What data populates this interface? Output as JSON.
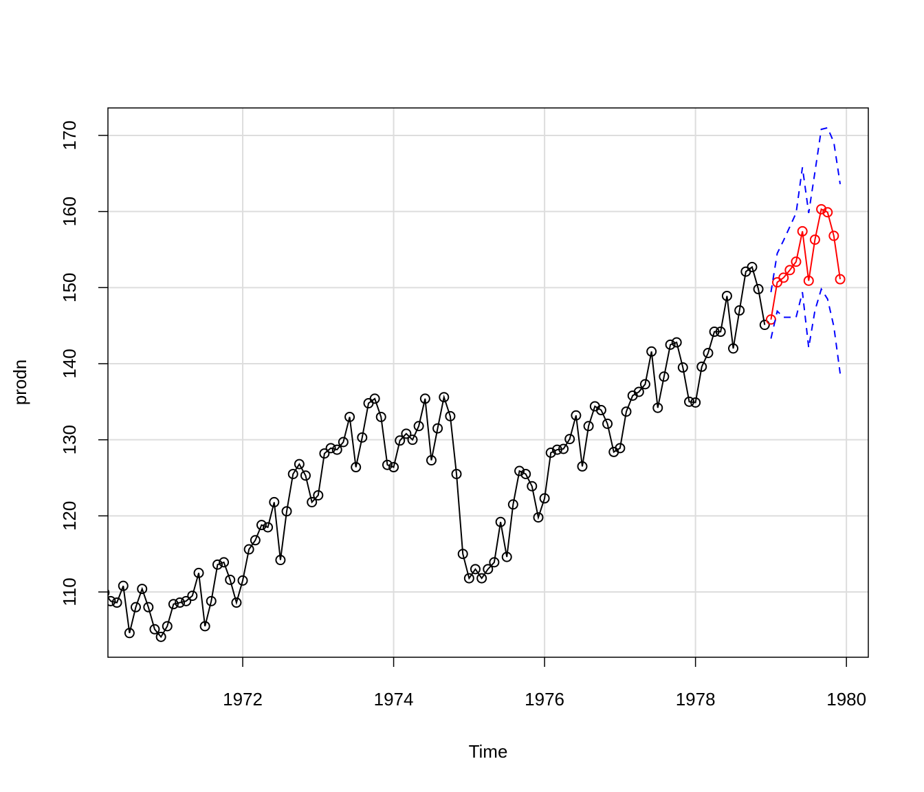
{
  "chart_data": {
    "type": "line",
    "x_label": "Time",
    "y_label": "prodn",
    "x": [
      1970.167,
      1970.25,
      1970.333,
      1970.417,
      1970.5,
      1970.583,
      1970.667,
      1970.75,
      1970.833,
      1970.917,
      1971,
      1971.083,
      1971.167,
      1971.25,
      1971.333,
      1971.417,
      1971.5,
      1971.583,
      1971.667,
      1971.75,
      1971.833,
      1971.917,
      1972,
      1972.083,
      1972.167,
      1972.25,
      1972.333,
      1972.417,
      1972.5,
      1972.583,
      1972.667,
      1972.75,
      1972.833,
      1972.917,
      1973,
      1973.083,
      1973.167,
      1973.25,
      1973.333,
      1973.417,
      1973.5,
      1973.583,
      1973.667,
      1973.75,
      1973.833,
      1973.917,
      1974,
      1974.083,
      1974.167,
      1974.25,
      1974.333,
      1974.417,
      1974.5,
      1974.583,
      1974.667,
      1974.75,
      1974.833,
      1974.917,
      1975,
      1975.083,
      1975.167,
      1975.25,
      1975.333,
      1975.417,
      1975.5,
      1975.583,
      1975.667,
      1975.75,
      1975.833,
      1975.917,
      1976,
      1976.083,
      1976.167,
      1976.25,
      1976.333,
      1976.417,
      1976.5,
      1976.583,
      1976.667,
      1976.75,
      1976.833,
      1976.917,
      1977,
      1977.083,
      1977.167,
      1977.25,
      1977.333,
      1977.417,
      1977.5,
      1977.583,
      1977.667,
      1977.75,
      1977.833,
      1977.917,
      1978,
      1978.083,
      1978.167,
      1978.25,
      1978.333,
      1978.417,
      1978.5,
      1978.583,
      1978.667,
      1978.75,
      1978.833,
      1978.917,
      1979,
      1979.083,
      1979.167,
      1979.25,
      1979.333,
      1979.417,
      1979.5,
      1979.583,
      1979.667,
      1979.75,
      1979.833,
      1979.917
    ],
    "series": [
      {
        "color": "#000000",
        "marker": "circle",
        "linestyle": "solid",
        "values": [
          109.9,
          108.8,
          108.6,
          110.8,
          104.6,
          108.0,
          110.4,
          108.0,
          105.1,
          104.1,
          105.5,
          108.4,
          108.6,
          108.8,
          109.5,
          112.5,
          105.5,
          108.8,
          113.6,
          113.9,
          111.6,
          108.6,
          111.5,
          115.6,
          116.8,
          118.8,
          118.5,
          121.8,
          114.2,
          120.6,
          125.5,
          126.8,
          125.3,
          121.8,
          122.7,
          128.2,
          128.9,
          128.7,
          129.7,
          133.0,
          126.4,
          130.3,
          134.8,
          135.4,
          133.0,
          126.7,
          126.4,
          129.9,
          130.8,
          130.0,
          131.8,
          135.4,
          127.3,
          131.5,
          135.6,
          133.1,
          125.5,
          115.0,
          111.8,
          113.0,
          111.8,
          113.0,
          113.9,
          119.2,
          114.6,
          121.5,
          125.9,
          125.5,
          123.9,
          119.8,
          122.3,
          128.3,
          128.7,
          128.8,
          130.1,
          133.2,
          126.5,
          131.8,
          134.4,
          133.9,
          132.1,
          128.4,
          128.9,
          133.7,
          135.8,
          136.3,
          137.3,
          141.6,
          134.2,
          138.3,
          142.5,
          142.8,
          139.5,
          135.0,
          134.9,
          139.6,
          141.4,
          144.2,
          144.2,
          148.9,
          142.0,
          147.0,
          152.1,
          152.7,
          149.8,
          145.1,
          null,
          null,
          null,
          null,
          null,
          null,
          null,
          null,
          null,
          null,
          null,
          null
        ]
      },
      {
        "color": "#ff0000",
        "marker": "circle",
        "linestyle": "solid",
        "values": [
          null,
          null,
          null,
          null,
          null,
          null,
          null,
          null,
          null,
          null,
          null,
          null,
          null,
          null,
          null,
          null,
          null,
          null,
          null,
          null,
          null,
          null,
          null,
          null,
          null,
          null,
          null,
          null,
          null,
          null,
          null,
          null,
          null,
          null,
          null,
          null,
          null,
          null,
          null,
          null,
          null,
          null,
          null,
          null,
          null,
          null,
          null,
          null,
          null,
          null,
          null,
          null,
          null,
          null,
          null,
          null,
          null,
          null,
          null,
          null,
          null,
          null,
          null,
          null,
          null,
          null,
          null,
          null,
          null,
          null,
          null,
          null,
          null,
          null,
          null,
          null,
          null,
          null,
          null,
          null,
          null,
          null,
          null,
          null,
          null,
          null,
          null,
          null,
          null,
          null,
          null,
          null,
          null,
          null,
          null,
          null,
          null,
          null,
          null,
          null,
          null,
          null,
          null,
          null,
          null,
          null,
          145.8,
          150.7,
          151.3,
          152.3,
          153.4,
          157.4,
          150.9,
          156.3,
          160.3,
          159.9,
          156.8,
          151.1
        ]
      },
      {
        "color": "#0000ff",
        "marker": "none",
        "linestyle": "dashed",
        "values": [
          null,
          null,
          null,
          null,
          null,
          null,
          null,
          null,
          null,
          null,
          null,
          null,
          null,
          null,
          null,
          null,
          null,
          null,
          null,
          null,
          null,
          null,
          null,
          null,
          null,
          null,
          null,
          null,
          null,
          null,
          null,
          null,
          null,
          null,
          null,
          null,
          null,
          null,
          null,
          null,
          null,
          null,
          null,
          null,
          null,
          null,
          null,
          null,
          null,
          null,
          null,
          null,
          null,
          null,
          null,
          null,
          null,
          null,
          null,
          null,
          null,
          null,
          null,
          null,
          null,
          null,
          null,
          null,
          null,
          null,
          null,
          null,
          null,
          null,
          null,
          null,
          null,
          null,
          null,
          null,
          null,
          null,
          null,
          null,
          null,
          null,
          null,
          null,
          null,
          null,
          null,
          null,
          null,
          null,
          null,
          null,
          null,
          null,
          null,
          null,
          null,
          null,
          null,
          null,
          null,
          null,
          149.4,
          154.5,
          156.2,
          158.0,
          159.8,
          165.8,
          159.8,
          165.2,
          170.8,
          171.0,
          169.1,
          163.6
        ]
      },
      {
        "color": "#0000ff",
        "marker": "none",
        "linestyle": "dashed",
        "values": [
          null,
          null,
          null,
          null,
          null,
          null,
          null,
          null,
          null,
          null,
          null,
          null,
          null,
          null,
          null,
          null,
          null,
          null,
          null,
          null,
          null,
          null,
          null,
          null,
          null,
          null,
          null,
          null,
          null,
          null,
          null,
          null,
          null,
          null,
          null,
          null,
          null,
          null,
          null,
          null,
          null,
          null,
          null,
          null,
          null,
          null,
          null,
          null,
          null,
          null,
          null,
          null,
          null,
          null,
          null,
          null,
          null,
          null,
          null,
          null,
          null,
          null,
          null,
          null,
          null,
          null,
          null,
          null,
          null,
          null,
          null,
          null,
          null,
          null,
          null,
          null,
          null,
          null,
          null,
          null,
          null,
          null,
          null,
          null,
          null,
          null,
          null,
          null,
          null,
          null,
          null,
          null,
          null,
          null,
          null,
          null,
          null,
          null,
          null,
          null,
          null,
          null,
          null,
          null,
          null,
          null,
          143.3,
          146.9,
          146.1,
          146.1,
          146.1,
          149.4,
          142.1,
          147.0,
          149.8,
          148.5,
          144.9,
          138.7
        ]
      }
    ],
    "xlim": [
      1970.214,
      1980.29
    ],
    "ylim": [
      101.42,
      173.61
    ],
    "xticks": [
      1972,
      1974,
      1976,
      1978,
      1980
    ],
    "yticks": [
      110,
      120,
      130,
      140,
      150,
      160,
      170
    ],
    "grid": true
  }
}
